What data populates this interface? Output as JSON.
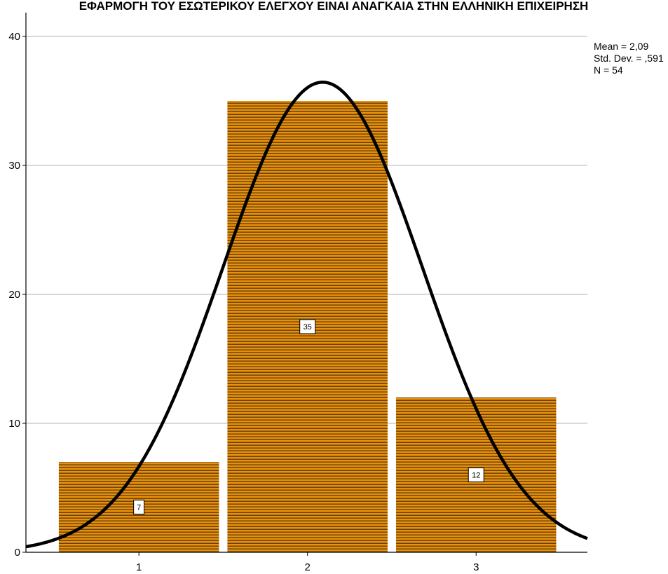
{
  "chart_data": {
    "type": "bar",
    "title": "ΕΦΑΡΜΟΓΗ ΤΟΥ ΕΣΩΤΕΡΙΚΟΥ ΕΛΕΓΧΟΥ ΕΙΝΑΙ ΑΝΑΓΚΑΙΑ ΣΤΗΝ ΕΛΛΗΝΙΚΗ ΕΠΙΧΕΙΡΗΣΗ",
    "categories": [
      "1",
      "2",
      "3"
    ],
    "values": [
      7,
      35,
      12
    ],
    "data_labels": [
      "7",
      "35",
      "12"
    ],
    "xlabel": "",
    "ylabel": "",
    "ylim": [
      0,
      40
    ],
    "yticks": [
      "0",
      "10",
      "20",
      "30",
      "40"
    ],
    "grid": true,
    "normal_curve": {
      "mean": 2.09,
      "sd": 0.591,
      "n": 54,
      "bin_width": 1
    },
    "stats": [
      "Mean = 2,09",
      "Std. Dev. = ,591",
      "N = 54"
    ],
    "legend_position": "top-right",
    "colors": {
      "bar_fill": "#e8900b",
      "bar_stripe": "#6b4308",
      "curve": "#000000",
      "grid": "#d9d9d9",
      "axis": "#000000"
    }
  }
}
